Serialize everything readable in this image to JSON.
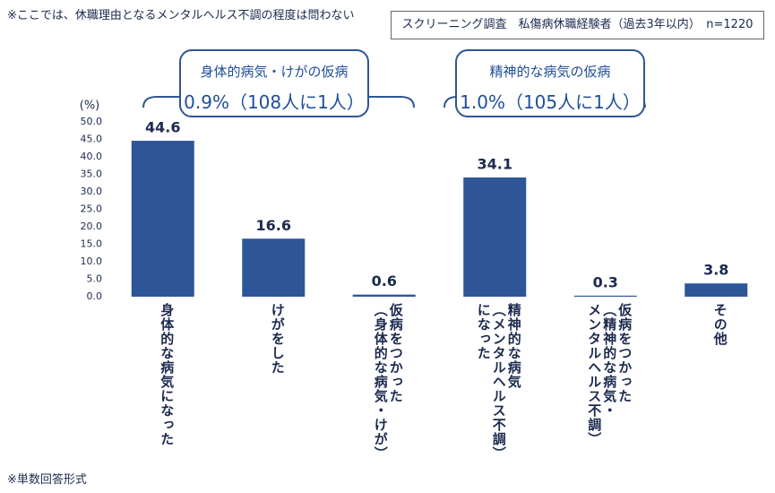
{
  "note": "※ここでは、休職理由となるメンタルヘルス不調の程度は問わない",
  "screening": "スクリーニング調査　私傷病休職経験者（過去3年以内）　n=1220",
  "footnote": "※単数回答形式",
  "callouts": [
    {
      "title": "身体的病気・けがの仮病",
      "value": "0.9%（108人に1人）"
    },
    {
      "title": "精神的な病気の仮病",
      "value": "1.0%（105人に1人）"
    }
  ],
  "chart_data": {
    "type": "bar",
    "y_label": "(%)",
    "categories": [
      [
        "身体的な病気になった"
      ],
      [
        "けがをした"
      ],
      [
        "仮病をつかった",
        "（身体的な病気・けが）"
      ],
      [
        "精神的な病気",
        "（メンタルヘルス不調）",
        "になった"
      ],
      [
        "仮病をつかった",
        "（精神的な病気・",
        "メンタルヘルス不調）"
      ],
      [
        "その他"
      ]
    ],
    "values": [
      44.6,
      16.6,
      0.6,
      34.1,
      0.3,
      3.8
    ],
    "color": "#2e5597",
    "ylim": [
      0,
      50
    ],
    "yticks": [
      {
        "value": 0,
        "label": "0.0"
      },
      {
        "value": 5,
        "label": "5.0"
      },
      {
        "value": 10,
        "label": "10.0"
      },
      {
        "value": 15,
        "label": "15.0"
      },
      {
        "value": 20,
        "label": "20.0"
      },
      {
        "value": 25,
        "label": "25.0"
      },
      {
        "value": 30,
        "label": "30.0"
      },
      {
        "value": 35,
        "label": "35.0"
      },
      {
        "value": 40,
        "label": "40.0"
      },
      {
        "value": 45,
        "label": "45.0"
      },
      {
        "value": 50,
        "label": "50.0"
      }
    ]
  }
}
